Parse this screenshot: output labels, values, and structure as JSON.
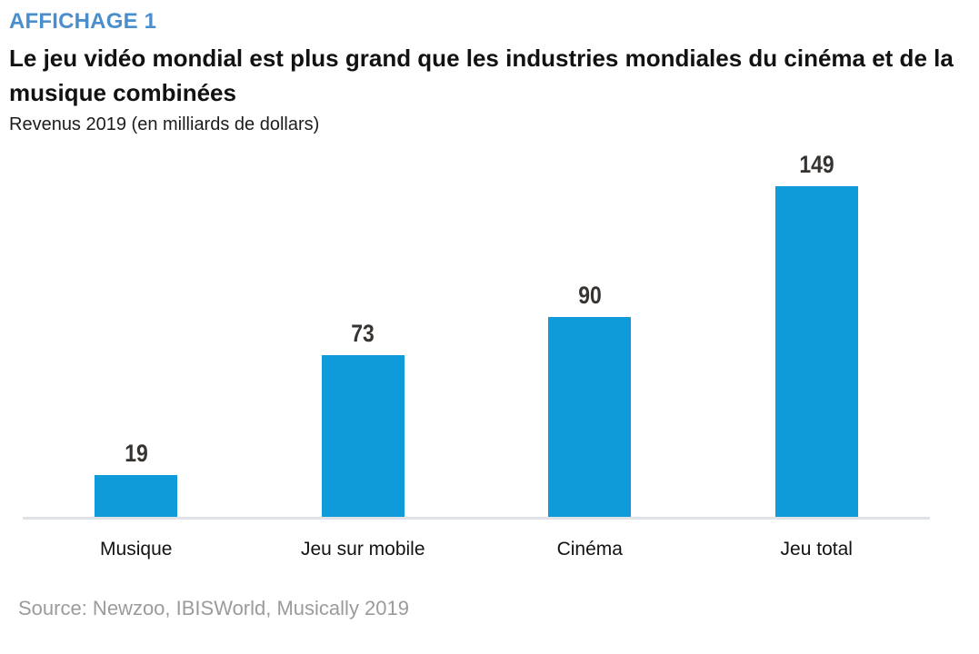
{
  "header": {
    "eyebrow": "AFFICHAGE 1",
    "title": "Le jeu vidéo mondial est plus grand que les industries mondiales du cinéma et de la musique combinées",
    "subtitle": "Revenus 2019 (en milliards de dollars)"
  },
  "chart_data": {
    "type": "bar",
    "categories": [
      "Musique",
      "Jeu sur mobile",
      "Cinéma",
      "Jeu total"
    ],
    "values": [
      19,
      73,
      90,
      149
    ],
    "title": "Le jeu vidéo mondial est plus grand que les industries mondiales du cinéma et de la musique combinées",
    "xlabel": "",
    "ylabel": "Revenus 2019 (en milliards de dollars)",
    "ylim": [
      0,
      160
    ],
    "grid": false,
    "legend": false,
    "data_labels": true,
    "bar_color": "#0f9bd9"
  },
  "footer": {
    "source": "Source: Newzoo, IBISWorld, Musically 2019"
  },
  "colors": {
    "eyebrow_blue": "#4a8ecb",
    "bar_blue": "#0f9bd9",
    "axis_gray": "#dfe2e7",
    "source_gray": "#9b9b9b",
    "value_label": "#363330"
  }
}
